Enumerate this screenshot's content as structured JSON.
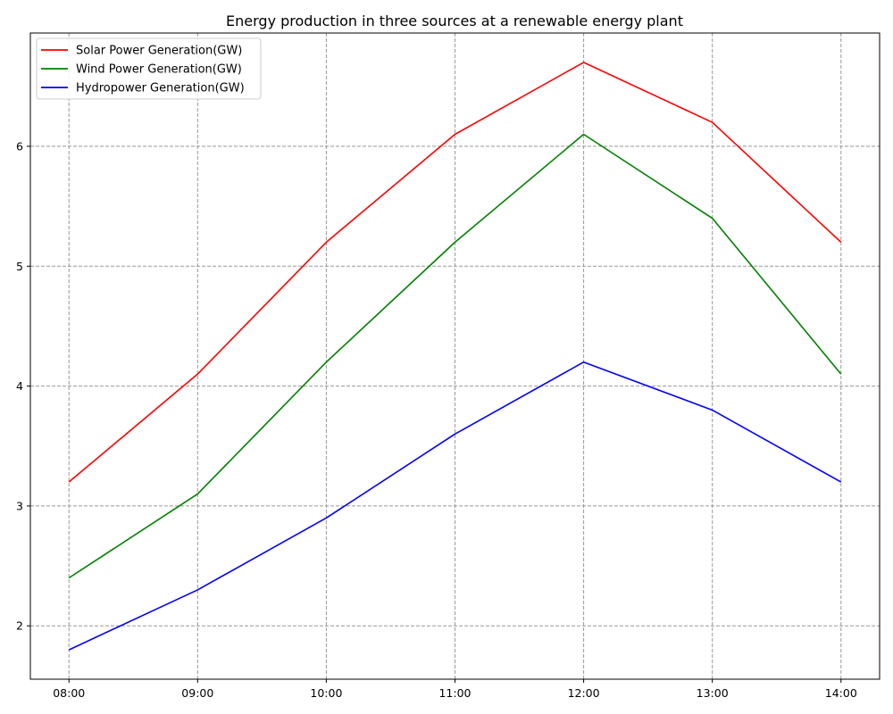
{
  "chart_data": {
    "type": "line",
    "title": "Energy production in three sources at a renewable energy plant",
    "xlabel": "",
    "ylabel": "",
    "x": [
      "08:00",
      "09:00",
      "10:00",
      "11:00",
      "12:00",
      "13:00",
      "14:00"
    ],
    "y_ticks": [
      2,
      3,
      4,
      5,
      6
    ],
    "ylim": [
      1.555,
      6.945
    ],
    "grid": true,
    "legend_position": "top-left",
    "series": [
      {
        "name": "Solar Power Generation(GW)",
        "color": "#ff0000",
        "values": [
          3.2,
          4.1,
          5.2,
          6.1,
          6.7,
          6.2,
          5.2
        ]
      },
      {
        "name": "Wind Power Generation(GW)",
        "color": "#008000",
        "values": [
          2.4,
          3.1,
          4.2,
          5.2,
          6.1,
          5.4,
          4.1
        ]
      },
      {
        "name": "Hydropower Generation(GW)",
        "color": "#0000ff",
        "values": [
          1.8,
          2.3,
          2.9,
          3.6,
          4.2,
          3.8,
          3.2
        ]
      }
    ]
  }
}
